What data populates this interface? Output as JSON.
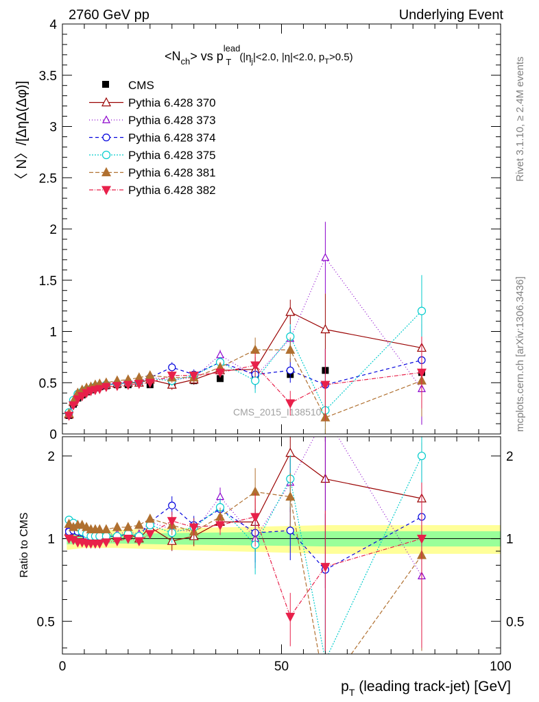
{
  "header": {
    "left": "2760 GeV pp",
    "right": "Underlying Event"
  },
  "side_labels": {
    "rivet": "Rivet 3.1.10, ≥ 2.4M events",
    "mcplots": "mcplots.cern.ch [arXiv:1306.3436]"
  },
  "watermark": "CMS_2015_I1385107",
  "chart_data": {
    "type": "line",
    "title": {
      "main": "<N",
      "main_sub": "ch",
      "vs": "> vs p",
      "pt_sub": "T",
      "pt_sup": "lead",
      "cuts1": "(|η",
      "cuts_sub": "j",
      "cuts2": "|<2.0, |η|<2.0, p",
      "cuts_sub2": "T",
      "cuts3": ">0.5)"
    },
    "ylabel": "〈 N〉/[ΔηΔ(Δφ)]",
    "ratio_ylabel": "Ratio to CMS",
    "xlabel": "p",
    "xlabel_sub": "T",
    "xlabel_rest": " (leading track-jet) [GeV]",
    "xlim": [
      0,
      100
    ],
    "ylim": [
      0,
      4
    ],
    "ratio_ylim": [
      0.38,
      2.35
    ],
    "xticks": [
      "0",
      "50",
      "100"
    ],
    "yticks": [
      "0",
      "0.5",
      "1",
      "1.5",
      "2",
      "2.5",
      "3",
      "3.5",
      "4"
    ],
    "ratio_ticks": [
      "0.5",
      "1",
      "2"
    ],
    "grid": false,
    "legend_position": "top-left",
    "data": {
      "name": "CMS",
      "color": "#000000",
      "x": [
        1.5,
        2.5,
        3.5,
        4.5,
        5.5,
        6.5,
        7.5,
        8.5,
        10,
        12.5,
        15,
        17.5,
        20,
        25,
        30,
        36,
        44,
        52,
        60,
        82
      ],
      "y": [
        0.18,
        0.29,
        0.35,
        0.38,
        0.41,
        0.43,
        0.45,
        0.46,
        0.47,
        0.48,
        0.48,
        0.5,
        0.48,
        0.49,
        0.52,
        0.54,
        0.55,
        0.58,
        0.62,
        0.6
      ]
    },
    "series": [
      {
        "name": "Pythia 6.428 370",
        "color": "#990000",
        "dash": "",
        "marker": "tri-up-open",
        "x": [
          1.5,
          2.5,
          3.5,
          4.5,
          5.5,
          6.5,
          7.5,
          8.5,
          10,
          12.5,
          15,
          17.5,
          20,
          25,
          30,
          36,
          44,
          52,
          60,
          82
        ],
        "y": [
          0.19,
          0.31,
          0.38,
          0.4,
          0.42,
          0.44,
          0.46,
          0.47,
          0.48,
          0.49,
          0.5,
          0.5,
          0.53,
          0.48,
          0.53,
          0.62,
          0.63,
          1.19,
          1.02,
          0.84
        ],
        "ratio": [
          1.06,
          1.07,
          1.09,
          1.05,
          1.02,
          1.02,
          1.02,
          1.02,
          1.02,
          1.02,
          1.04,
          1.0,
          1.1,
          0.98,
          1.02,
          1.15,
          1.15,
          2.05,
          1.65,
          1.4
        ]
      },
      {
        "name": "Pythia 6.428 373",
        "color": "#8b00cc",
        "dash": "1,3",
        "marker": "tri-up-open-small",
        "x": [
          1.5,
          2.5,
          3.5,
          4.5,
          5.5,
          6.5,
          7.5,
          8.5,
          10,
          12.5,
          15,
          17.5,
          20,
          25,
          30,
          36,
          44,
          52,
          60,
          82
        ],
        "y": [
          0.2,
          0.31,
          0.38,
          0.41,
          0.43,
          0.45,
          0.46,
          0.47,
          0.49,
          0.5,
          0.51,
          0.52,
          0.55,
          0.53,
          0.55,
          0.77,
          0.56,
          0.93,
          1.72,
          0.44
        ],
        "ratio": [
          1.1,
          1.07,
          1.09,
          1.08,
          1.05,
          1.05,
          1.02,
          1.02,
          1.04,
          1.04,
          1.06,
          1.04,
          1.15,
          1.08,
          1.06,
          1.42,
          1.0,
          1.6,
          2.8,
          0.73
        ]
      },
      {
        "name": "Pythia 6.428 374",
        "color": "#0000dd",
        "dash": "5,4",
        "marker": "circle-open",
        "x": [
          1.5,
          2.5,
          3.5,
          4.5,
          5.5,
          6.5,
          7.5,
          8.5,
          10,
          12.5,
          15,
          17.5,
          20,
          25,
          30,
          36,
          44,
          52,
          60,
          82
        ],
        "y": [
          0.19,
          0.31,
          0.37,
          0.4,
          0.42,
          0.44,
          0.45,
          0.47,
          0.48,
          0.49,
          0.5,
          0.51,
          0.55,
          0.65,
          0.58,
          0.7,
          0.58,
          0.62,
          0.48,
          0.72
        ],
        "ratio": [
          1.06,
          1.07,
          1.06,
          1.05,
          1.02,
          1.02,
          1.0,
          1.02,
          1.02,
          1.02,
          1.04,
          1.02,
          1.15,
          1.32,
          1.12,
          1.28,
          1.05,
          1.07,
          0.77,
          1.2
        ]
      },
      {
        "name": "Pythia 6.428 375",
        "color": "#00cccc",
        "dash": "2,2",
        "marker": "circle-open-large",
        "x": [
          1.5,
          2.5,
          3.5,
          4.5,
          5.5,
          6.5,
          7.5,
          8.5,
          10,
          12.5,
          15,
          17.5,
          20,
          25,
          30,
          36,
          44,
          52,
          60,
          82
        ],
        "y": [
          0.21,
          0.33,
          0.39,
          0.41,
          0.43,
          0.44,
          0.46,
          0.47,
          0.48,
          0.49,
          0.5,
          0.51,
          0.54,
          0.52,
          0.57,
          0.7,
          0.52,
          0.95,
          0.23,
          1.2
        ],
        "ratio": [
          1.17,
          1.14,
          1.1,
          1.06,
          1.04,
          1.02,
          1.02,
          1.02,
          1.02,
          1.02,
          1.04,
          1.02,
          1.12,
          1.05,
          1.1,
          1.3,
          0.95,
          1.65,
          0.36,
          2.0
        ]
      },
      {
        "name": "Pythia 6.428 381",
        "color": "#b07030",
        "dash": "6,3",
        "marker": "tri-up-filled",
        "x": [
          1.5,
          2.5,
          3.5,
          4.5,
          5.5,
          6.5,
          7.5,
          8.5,
          10,
          12.5,
          15,
          17.5,
          20,
          25,
          30,
          36,
          44,
          52,
          60,
          82
        ],
        "y": [
          0.2,
          0.32,
          0.4,
          0.43,
          0.45,
          0.46,
          0.48,
          0.49,
          0.5,
          0.52,
          0.53,
          0.55,
          0.57,
          0.55,
          0.55,
          0.65,
          0.82,
          0.82,
          0.16,
          0.52
        ],
        "ratio": [
          1.13,
          1.1,
          1.12,
          1.12,
          1.1,
          1.08,
          1.08,
          1.08,
          1.08,
          1.1,
          1.1,
          1.12,
          1.18,
          1.12,
          1.06,
          1.2,
          1.48,
          1.42,
          0.28,
          0.87
        ]
      },
      {
        "name": "Pythia 6.428 382",
        "color": "#e8204a",
        "dash": "6,2,1,2",
        "marker": "tri-down-filled",
        "x": [
          1.5,
          2.5,
          3.5,
          4.5,
          5.5,
          6.5,
          7.5,
          8.5,
          10,
          12.5,
          15,
          17.5,
          20,
          25,
          30,
          36,
          44,
          52,
          60,
          82
        ],
        "y": [
          0.18,
          0.28,
          0.34,
          0.37,
          0.4,
          0.42,
          0.43,
          0.44,
          0.46,
          0.47,
          0.48,
          0.49,
          0.5,
          0.57,
          0.57,
          0.6,
          0.67,
          0.3,
          0.48,
          0.6
        ],
        "ratio": [
          1.0,
          0.99,
          0.97,
          0.97,
          0.96,
          0.96,
          0.96,
          0.96,
          0.97,
          0.98,
          1.0,
          0.98,
          1.04,
          1.16,
          1.1,
          1.12,
          1.2,
          0.52,
          0.79,
          1.0
        ]
      }
    ]
  }
}
